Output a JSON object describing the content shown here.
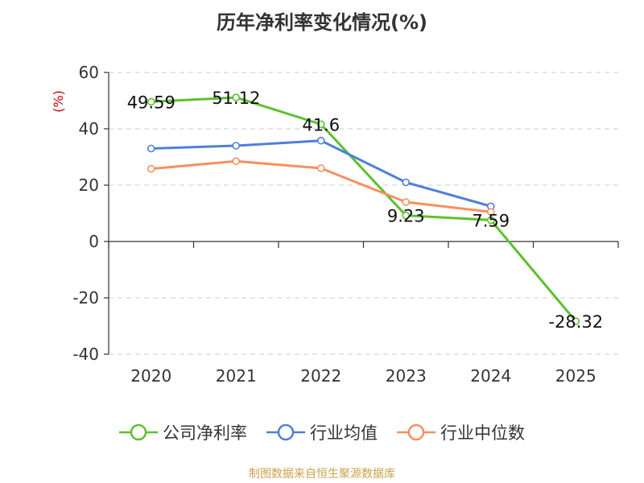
{
  "chart_data": {
    "type": "line",
    "title": "历年净利率变化情况(%)",
    "ylabel": "(%)",
    "xlabel": "",
    "categories": [
      "2020",
      "2021",
      "2022",
      "2023",
      "2024",
      "2025"
    ],
    "ylim": [
      -40,
      60
    ],
    "yticks": [
      60,
      40,
      20,
      0,
      -20,
      -40
    ],
    "grid": true,
    "legend_position": "bottom",
    "series": [
      {
        "name": "公司净利率",
        "color": "#5cc12e",
        "values": [
          49.59,
          51.12,
          41.6,
          9.23,
          7.59,
          -28.32
        ],
        "labels": [
          "49.59",
          "51.12",
          "41.6",
          "9.23",
          "7.59",
          "-28.32"
        ]
      },
      {
        "name": "行业均值",
        "color": "#4f7fd9",
        "values": [
          33.0,
          34.0,
          35.8,
          21.0,
          12.5,
          null
        ]
      },
      {
        "name": "行业中位数",
        "color": "#f5905f",
        "values": [
          25.8,
          28.5,
          26.0,
          14.0,
          10.5,
          null
        ]
      }
    ]
  },
  "footer": {
    "source": "制图数据来自恒生聚源数据库"
  }
}
